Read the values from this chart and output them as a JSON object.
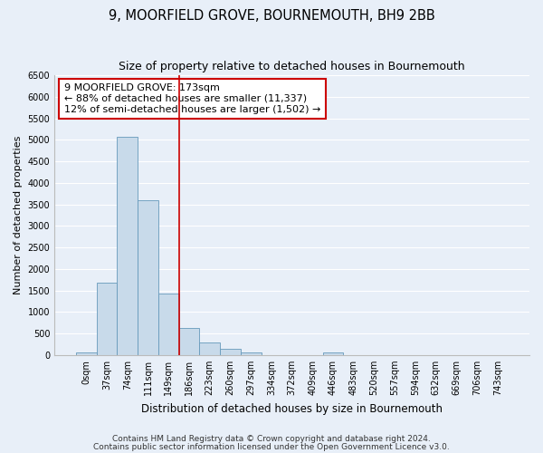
{
  "title": "9, MOORFIELD GROVE, BOURNEMOUTH, BH9 2BB",
  "subtitle": "Size of property relative to detached houses in Bournemouth",
  "xlabel": "Distribution of detached houses by size in Bournemouth",
  "ylabel": "Number of detached properties",
  "categories": [
    "0sqm",
    "37sqm",
    "74sqm",
    "111sqm",
    "149sqm",
    "186sqm",
    "223sqm",
    "260sqm",
    "297sqm",
    "334sqm",
    "372sqm",
    "409sqm",
    "446sqm",
    "483sqm",
    "520sqm",
    "557sqm",
    "594sqm",
    "632sqm",
    "669sqm",
    "706sqm",
    "743sqm"
  ],
  "values": [
    50,
    1670,
    5080,
    3600,
    1420,
    620,
    300,
    140,
    50,
    0,
    0,
    0,
    50,
    0,
    0,
    0,
    0,
    0,
    0,
    0,
    0
  ],
  "bar_color": "#c8daea",
  "bar_edge_color": "#6699bb",
  "vline_pos": 5,
  "vline_color": "#cc0000",
  "annotation_text": "9 MOORFIELD GROVE: 173sqm\n← 88% of detached houses are smaller (11,337)\n12% of semi-detached houses are larger (1,502) →",
  "annotation_edge_color": "#cc0000",
  "annotation_bg": "#ffffff",
  "ylim": [
    0,
    6500
  ],
  "yticks": [
    0,
    500,
    1000,
    1500,
    2000,
    2500,
    3000,
    3500,
    4000,
    4500,
    5000,
    5500,
    6000,
    6500
  ],
  "bg_color": "#e8eff8",
  "grid_color": "#ffffff",
  "footnote1": "Contains HM Land Registry data © Crown copyright and database right 2024.",
  "footnote2": "Contains public sector information licensed under the Open Government Licence v3.0.",
  "title_fontsize": 10.5,
  "subtitle_fontsize": 9,
  "tick_fontsize": 7,
  "ylabel_fontsize": 8,
  "xlabel_fontsize": 8.5,
  "footnote_fontsize": 6.5,
  "annot_fontsize": 8
}
